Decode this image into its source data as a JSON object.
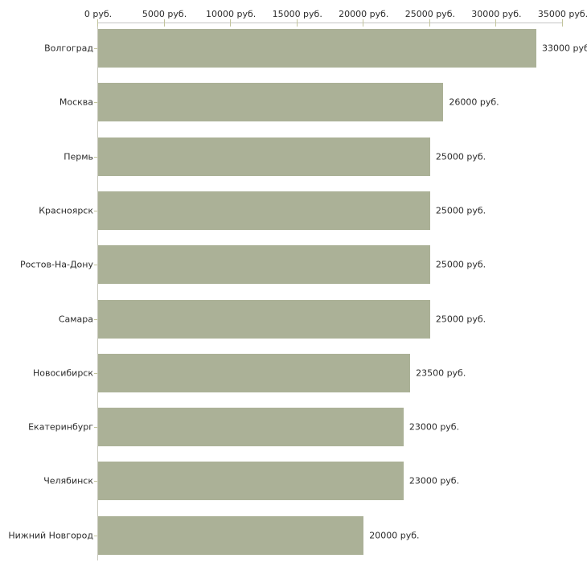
{
  "chart_data": {
    "type": "bar",
    "orientation": "horizontal",
    "title": "",
    "xlabel": "",
    "ylabel": "",
    "grid": false,
    "legend": false,
    "categories": [
      "Волгоград",
      "Москва",
      "Пермь",
      "Красноярск",
      "Ростов-На-Дону",
      "Самара",
      "Новосибирск",
      "Екатеринбург",
      "Челябинск",
      "Нижний Новгород"
    ],
    "values": [
      33000,
      26000,
      25000,
      25000,
      25000,
      25000,
      23500,
      23000,
      23000,
      20000
    ],
    "value_labels": [
      "33000 руб",
      "26000 руб.",
      "25000 руб.",
      "25000 руб.",
      "25000 руб.",
      "25000 руб.",
      "23500 руб.",
      "23000 руб.",
      "23000 руб.",
      "20000 руб."
    ],
    "x_axis": {
      "position": "top",
      "min": 0,
      "max": 35000,
      "ticks": [
        0,
        5000,
        10000,
        15000,
        20000,
        25000,
        30000,
        35000
      ],
      "tick_labels": [
        "0 руб.",
        "5000 руб.",
        "10000 руб.",
        "15000 руб.",
        "20000 руб.",
        "25000 руб.",
        "30000 руб.",
        "35000 руб."
      ]
    },
    "colors": {
      "bar": "#abb197",
      "axis_line": "#c6c6c6",
      "tick": "#c2c49c",
      "text": "#2b2b2b"
    }
  }
}
